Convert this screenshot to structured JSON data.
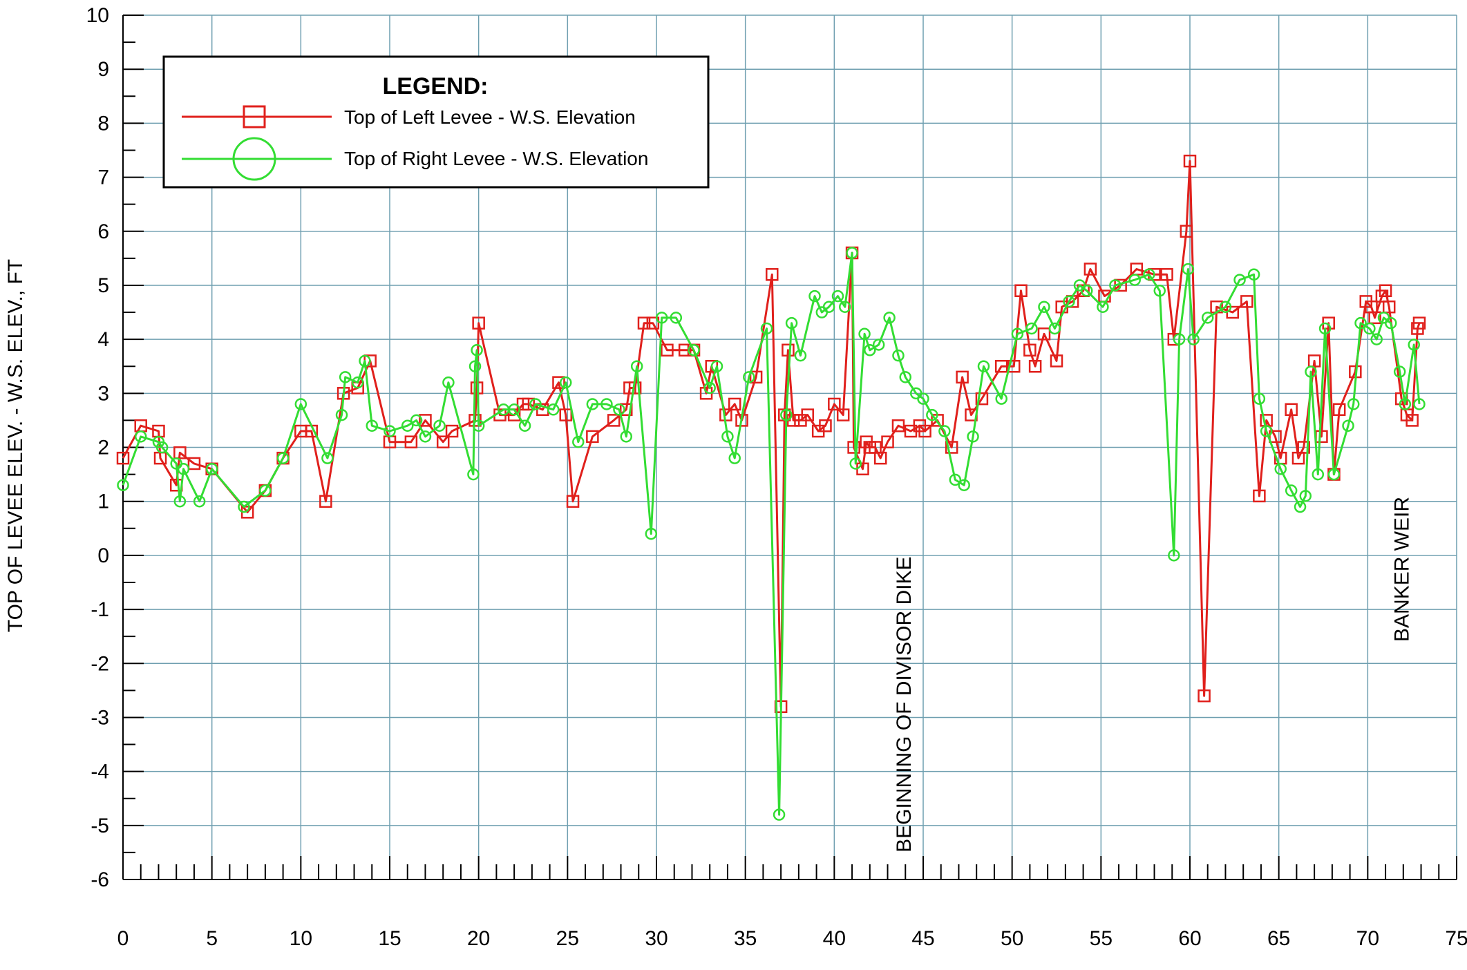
{
  "chart_data": {
    "type": "line",
    "title": "",
    "xlabel": "",
    "ylabel": "TOP OF LEVEE ELEV. - W.S. ELEV., FT",
    "xlim": [
      0,
      75
    ],
    "ylim": [
      -6,
      10
    ],
    "xticks": [
      0,
      5,
      10,
      15,
      20,
      25,
      30,
      35,
      40,
      45,
      50,
      55,
      60,
      65,
      70,
      75
    ],
    "yticks": [
      -6,
      -5,
      -4,
      -3,
      -2,
      -1,
      0,
      1,
      2,
      3,
      4,
      5,
      6,
      7,
      8,
      9,
      10
    ],
    "grid": true,
    "legend_title": "LEGEND:",
    "legend_position": "top-left",
    "annotations": [
      {
        "text": "BEGINNING OF DIVISOR DIKE",
        "x": 44.3,
        "y": -5.5
      },
      {
        "text": "BANKER WEIR",
        "x": 72.3,
        "y": -1.6
      }
    ],
    "series": [
      {
        "name": "Top of Left Levee - W.S. Elevation",
        "color": "#e0201c",
        "marker": "square",
        "x": [
          0,
          1,
          2,
          2.1,
          3,
          3.2,
          4,
          5,
          7,
          8,
          9,
          10,
          10.6,
          11.4,
          12.4,
          13.2,
          13.9,
          15,
          16.2,
          17,
          18,
          18.5,
          19.8,
          19.9,
          20,
          21.2,
          22,
          22.5,
          22.8,
          23.6,
          24.5,
          24.9,
          25.3,
          26.4,
          27.6,
          28.3,
          28.5,
          28.8,
          29.3,
          29.8,
          30.6,
          31.6,
          32.1,
          32.8,
          33.1,
          33.9,
          34.4,
          34.8,
          35.6,
          36.5,
          37,
          37.2,
          37.4,
          37.7,
          38.1,
          38.5,
          39.1,
          39.5,
          40,
          40.5,
          41,
          41.1,
          41.6,
          41.8,
          42,
          42.3,
          42.6,
          43,
          43.6,
          44.3,
          44.8,
          45.1,
          45.8,
          46.6,
          47.2,
          47.7,
          48.3,
          49.4,
          50.1,
          50.5,
          51,
          51.3,
          51.8,
          52.5,
          52.8,
          53.4,
          54,
          54.4,
          55.2,
          56.1,
          57,
          58,
          58.7,
          59.1,
          59.8,
          60,
          60.8,
          61.5,
          62.4,
          63.2,
          63.9,
          64.3,
          64.8,
          65.1,
          65.7,
          66.1,
          66.4,
          67,
          67.4,
          67.8,
          68.1,
          68.4,
          69.3,
          69.9,
          70.2,
          70.4,
          70.8,
          71,
          71.2,
          71.9,
          72.2,
          72.5,
          72.8,
          72.9
        ],
        "values": [
          1.8,
          2.4,
          2.3,
          1.8,
          1.3,
          1.9,
          1.7,
          1.6,
          0.8,
          1.2,
          1.8,
          2.3,
          2.3,
          1.0,
          3.0,
          3.1,
          3.6,
          2.1,
          2.1,
          2.5,
          2.1,
          2.3,
          2.5,
          3.1,
          4.3,
          2.6,
          2.6,
          2.8,
          2.8,
          2.7,
          3.2,
          2.6,
          1.0,
          2.2,
          2.5,
          2.7,
          3.1,
          3.1,
          4.3,
          4.3,
          3.8,
          3.8,
          3.8,
          3.0,
          3.5,
          2.6,
          2.8,
          2.5,
          3.3,
          5.2,
          -2.8,
          2.6,
          3.8,
          2.5,
          2.5,
          2.6,
          2.3,
          2.4,
          2.8,
          2.6,
          5.6,
          2.0,
          1.6,
          2.1,
          2.0,
          2.0,
          1.8,
          2.1,
          2.4,
          2.3,
          2.4,
          2.3,
          2.5,
          2.0,
          3.3,
          2.6,
          2.9,
          3.5,
          3.5,
          4.9,
          3.8,
          3.5,
          4.1,
          3.6,
          4.6,
          4.7,
          4.9,
          5.3,
          4.8,
          5.0,
          5.3,
          5.2,
          5.2,
          4.0,
          6.0,
          7.3,
          -2.6,
          4.6,
          4.5,
          4.7,
          1.1,
          2.5,
          2.2,
          1.8,
          2.7,
          1.8,
          2.0,
          3.6,
          2.2,
          4.3,
          1.5,
          2.7,
          3.4,
          4.7,
          4.6,
          4.4,
          4.8,
          4.9,
          4.6,
          2.9,
          2.6,
          2.5,
          4.2,
          4.3
        ]
      },
      {
        "name": "Top of Right Levee - W.S. Elevation",
        "color": "#33dd33",
        "marker": "circle",
        "x": [
          0,
          1,
          2,
          2.2,
          3,
          3.2,
          3.4,
          4.3,
          5,
          6.8,
          8,
          9,
          10,
          11.5,
          12.3,
          12.5,
          13.2,
          13.6,
          14,
          15,
          16,
          16.5,
          17,
          17.8,
          18.3,
          19.7,
          19.8,
          19.9,
          20,
          21.4,
          22,
          22.6,
          23.2,
          24.2,
          24.9,
          25.6,
          26.4,
          27.2,
          27.9,
          28.3,
          28.9,
          29.7,
          30.3,
          31.1,
          32.1,
          33,
          33.4,
          34,
          34.4,
          35.2,
          36.2,
          36.9,
          37.3,
          37.6,
          38.1,
          38.9,
          39.3,
          39.7,
          40.2,
          40.6,
          41,
          41.2,
          41.7,
          42,
          42.5,
          43.1,
          43.6,
          44,
          44.6,
          45,
          45.5,
          46.2,
          46.8,
          47.3,
          47.8,
          48.4,
          49.4,
          50.3,
          51.1,
          51.8,
          52.4,
          53.2,
          53.8,
          54.2,
          55.1,
          55.8,
          56.9,
          57.7,
          58.3,
          59.1,
          59.4,
          59.9,
          60.2,
          61,
          62,
          62.8,
          63.6,
          63.9,
          64.3,
          65.1,
          65.7,
          66.2,
          66.5,
          66.8,
          67.2,
          67.6,
          68.1,
          68.9,
          69.2,
          69.6,
          70.1,
          70.5,
          70.9,
          71.3,
          71.8,
          72.1,
          72.6,
          72.9
        ],
        "values": [
          1.3,
          2.2,
          2.1,
          2.0,
          1.7,
          1.0,
          1.6,
          1.0,
          1.6,
          0.9,
          1.2,
          1.8,
          2.8,
          1.8,
          2.6,
          3.3,
          3.2,
          3.6,
          2.4,
          2.3,
          2.4,
          2.5,
          2.2,
          2.4,
          3.2,
          1.5,
          3.5,
          3.8,
          2.4,
          2.7,
          2.7,
          2.4,
          2.8,
          2.7,
          3.2,
          2.1,
          2.8,
          2.8,
          2.7,
          2.2,
          3.5,
          0.4,
          4.4,
          4.4,
          3.8,
          3.1,
          3.5,
          2.2,
          1.8,
          3.3,
          4.2,
          -4.8,
          2.6,
          4.3,
          3.7,
          4.8,
          4.5,
          4.6,
          4.8,
          4.6,
          5.6,
          1.7,
          4.1,
          3.8,
          3.9,
          4.4,
          3.7,
          3.3,
          3.0,
          2.9,
          2.6,
          2.3,
          1.4,
          1.3,
          2.2,
          3.5,
          2.9,
          4.1,
          4.2,
          4.6,
          4.2,
          4.7,
          5.0,
          4.9,
          4.6,
          5.0,
          5.1,
          5.2,
          4.9,
          0.0,
          4.0,
          5.3,
          4.0,
          4.4,
          4.6,
          5.1,
          5.2,
          2.9,
          2.3,
          1.6,
          1.2,
          0.9,
          1.1,
          3.4,
          1.5,
          4.2,
          1.5,
          2.4,
          2.8,
          4.3,
          4.2,
          4.0,
          4.4,
          4.3,
          3.4,
          2.8,
          3.9,
          2.8
        ]
      }
    ]
  }
}
